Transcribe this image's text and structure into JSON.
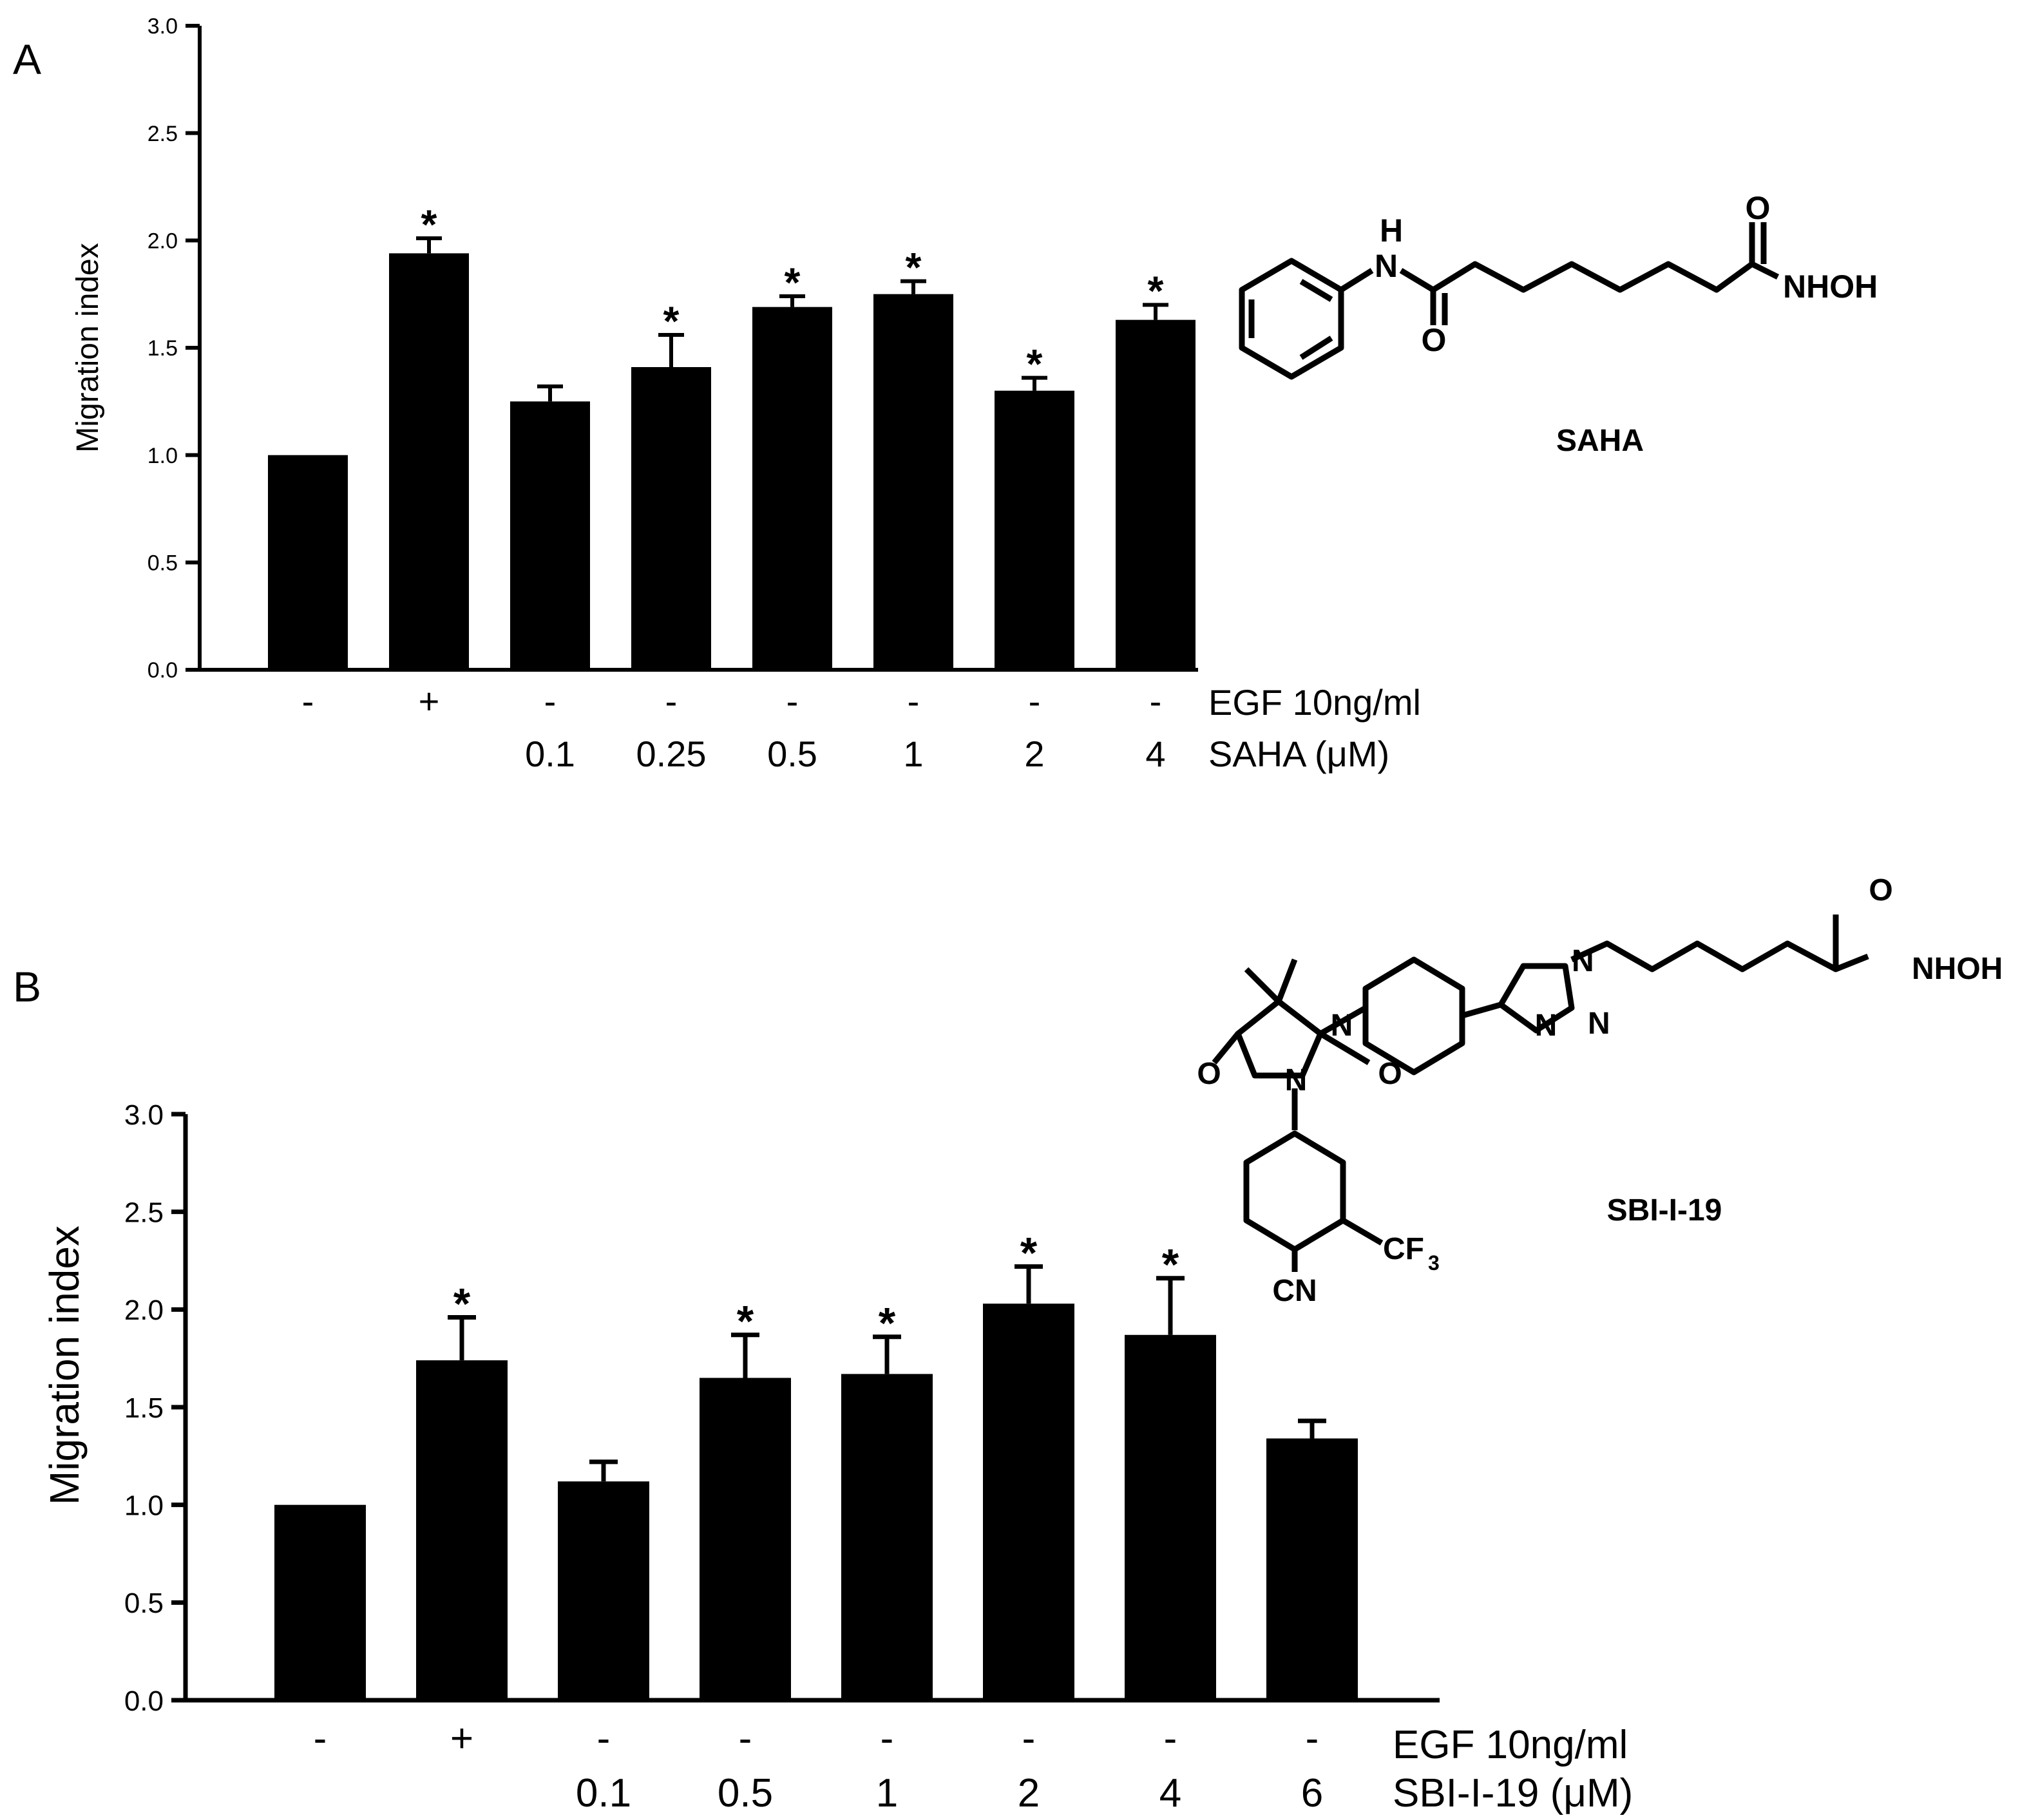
{
  "chart_data": [
    {
      "type": "bar",
      "panel_label": "A",
      "ylabel": "Migration index",
      "ylim": [
        0,
        3.0
      ],
      "y_ticks": [
        "0.0",
        "0.5",
        "1.0",
        "1.5",
        "2.0",
        "2.5",
        "3.0"
      ],
      "egf_label": "EGF 10ng/ml",
      "compound_label": "SAHA (μM)",
      "egf_row": [
        "-",
        "+",
        "-",
        "-",
        "-",
        "-",
        "-",
        "-"
      ],
      "dose_row": [
        "",
        "",
        "0.1",
        "0.25",
        "0.5",
        "1",
        "2",
        "4"
      ],
      "values": [
        1.0,
        1.94,
        1.25,
        1.41,
        1.69,
        1.75,
        1.3,
        1.63
      ],
      "errors": [
        0.0,
        0.07,
        0.07,
        0.15,
        0.05,
        0.06,
        0.06,
        0.07
      ],
      "significant": [
        false,
        true,
        false,
        true,
        true,
        true,
        true,
        true
      ],
      "significance_mark": "*",
      "bar_color": "#000000",
      "structure_name": "SAHA",
      "structure_atoms": [
        "H",
        "N",
        "O",
        "O",
        "NHOH"
      ]
    },
    {
      "type": "bar",
      "panel_label": "B",
      "ylabel": "Migration index",
      "ylim": [
        0,
        3.0
      ],
      "y_ticks": [
        "0.0",
        "0.5",
        "1.0",
        "1.5",
        "2.0",
        "2.5",
        "3.0"
      ],
      "egf_label": "EGF 10ng/ml",
      "compound_label": "SBI-I-19 (μM)",
      "egf_row": [
        "-",
        "+",
        "-",
        "-",
        "-",
        "-",
        "-",
        "-"
      ],
      "dose_row": [
        "",
        "",
        "0.1",
        "0.5",
        "1",
        "2",
        "4",
        "6"
      ],
      "values": [
        1.0,
        1.74,
        1.12,
        1.65,
        1.67,
        2.03,
        1.87,
        1.34
      ],
      "errors": [
        0.0,
        0.22,
        0.1,
        0.22,
        0.19,
        0.19,
        0.29,
        0.09
      ],
      "significant": [
        false,
        true,
        false,
        true,
        true,
        true,
        true,
        false
      ],
      "significance_mark": "*",
      "bar_color": "#000000",
      "structure_name": "SBI-I-19",
      "structure_atoms": [
        "N",
        "N",
        "O",
        "O",
        "N",
        "N",
        "N",
        "O",
        "NHOH",
        "CF",
        "3",
        "CN"
      ]
    }
  ]
}
